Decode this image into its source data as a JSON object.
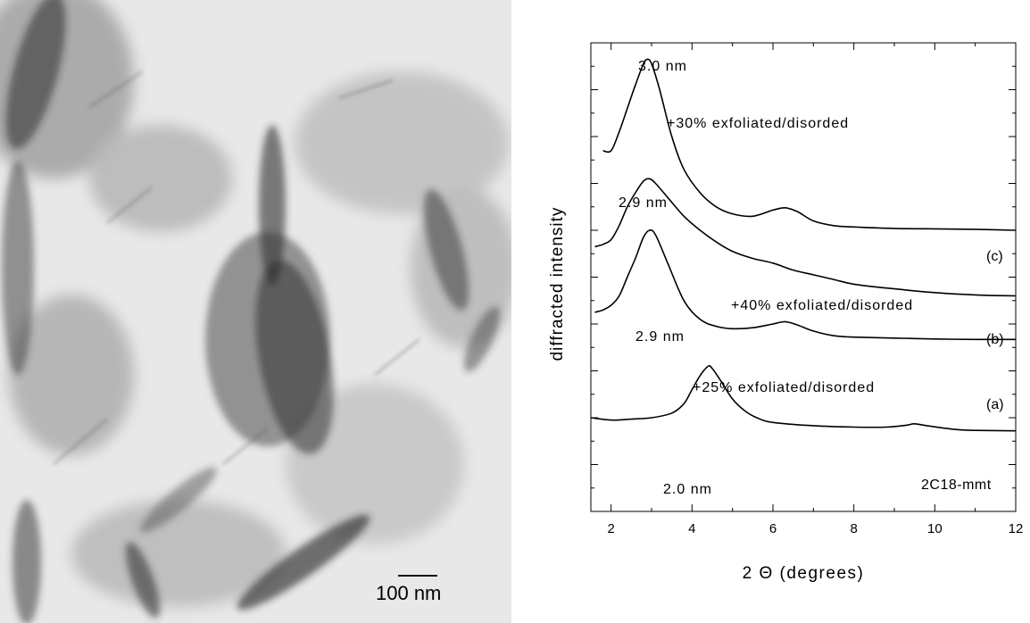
{
  "micrograph": {
    "scale_bar_label": "100 nm"
  },
  "chart_data": {
    "type": "line",
    "xlabel": "2 Θ (degrees)",
    "ylabel": "diffracted intensity",
    "xlim": [
      1.5,
      12
    ],
    "x_ticks": [
      "2",
      "4",
      "6",
      "8",
      "10",
      "12"
    ],
    "y_tick_labels": "none",
    "series": [
      {
        "name": "(c)",
        "annotation": "+30% exfoliated/disorded",
        "peak_label": "3.0 nm",
        "points": [
          [
            1.8,
            0.77
          ],
          [
            2.0,
            0.77
          ],
          [
            2.2,
            0.81
          ],
          [
            2.4,
            0.86
          ],
          [
            2.6,
            0.91
          ],
          [
            2.8,
            0.955
          ],
          [
            2.9,
            0.965
          ],
          [
            3.0,
            0.955
          ],
          [
            3.2,
            0.9
          ],
          [
            3.5,
            0.8
          ],
          [
            3.8,
            0.73
          ],
          [
            4.2,
            0.68
          ],
          [
            4.6,
            0.65
          ],
          [
            5.0,
            0.635
          ],
          [
            5.5,
            0.63
          ],
          [
            6.0,
            0.643
          ],
          [
            6.3,
            0.648
          ],
          [
            6.6,
            0.64
          ],
          [
            7.0,
            0.62
          ],
          [
            7.5,
            0.61
          ],
          [
            8.0,
            0.607
          ],
          [
            9.0,
            0.604
          ],
          [
            10.0,
            0.603
          ],
          [
            11.0,
            0.602
          ],
          [
            12.0,
            0.6
          ]
        ]
      },
      {
        "name": "(b)",
        "annotation": "+40% exfoliated/disorded",
        "peak_label": "2.9 nm",
        "points": [
          [
            1.6,
            0.565
          ],
          [
            1.8,
            0.57
          ],
          [
            2.0,
            0.58
          ],
          [
            2.2,
            0.61
          ],
          [
            2.4,
            0.65
          ],
          [
            2.6,
            0.68
          ],
          [
            2.8,
            0.705
          ],
          [
            2.95,
            0.71
          ],
          [
            3.1,
            0.7
          ],
          [
            3.4,
            0.67
          ],
          [
            3.8,
            0.63
          ],
          [
            4.2,
            0.6
          ],
          [
            4.6,
            0.575
          ],
          [
            5.0,
            0.555
          ],
          [
            5.5,
            0.54
          ],
          [
            6.0,
            0.53
          ],
          [
            6.5,
            0.515
          ],
          [
            7.0,
            0.505
          ],
          [
            7.5,
            0.495
          ],
          [
            8.0,
            0.485
          ],
          [
            9.0,
            0.475
          ],
          [
            10.0,
            0.467
          ],
          [
            11.0,
            0.462
          ],
          [
            12.0,
            0.46
          ]
        ]
      },
      {
        "name": "(a)",
        "annotation": "+25% exfoliated/disorded",
        "peak_label": "2.9 nm",
        "points": [
          [
            1.6,
            0.425
          ],
          [
            1.8,
            0.43
          ],
          [
            2.0,
            0.44
          ],
          [
            2.2,
            0.46
          ],
          [
            2.4,
            0.5
          ],
          [
            2.6,
            0.54
          ],
          [
            2.8,
            0.585
          ],
          [
            2.95,
            0.6
          ],
          [
            3.1,
            0.59
          ],
          [
            3.4,
            0.53
          ],
          [
            3.8,
            0.45
          ],
          [
            4.2,
            0.41
          ],
          [
            4.6,
            0.395
          ],
          [
            5.0,
            0.39
          ],
          [
            5.5,
            0.392
          ],
          [
            6.0,
            0.4
          ],
          [
            6.3,
            0.405
          ],
          [
            6.6,
            0.398
          ],
          [
            7.0,
            0.385
          ],
          [
            7.5,
            0.375
          ],
          [
            8.0,
            0.372
          ],
          [
            9.0,
            0.37
          ],
          [
            10.0,
            0.368
          ],
          [
            11.0,
            0.367
          ],
          [
            12.0,
            0.367
          ]
        ]
      },
      {
        "name": "2C18-mmt",
        "annotation": "",
        "peak_label": "2.0 nm",
        "points": [
          [
            1.5,
            0.2
          ],
          [
            2.0,
            0.195
          ],
          [
            2.5,
            0.197
          ],
          [
            3.0,
            0.2
          ],
          [
            3.5,
            0.21
          ],
          [
            3.8,
            0.23
          ],
          [
            4.0,
            0.26
          ],
          [
            4.2,
            0.29
          ],
          [
            4.4,
            0.31
          ],
          [
            4.5,
            0.305
          ],
          [
            4.7,
            0.28
          ],
          [
            5.0,
            0.24
          ],
          [
            5.3,
            0.215
          ],
          [
            5.6,
            0.2
          ],
          [
            6.0,
            0.19
          ],
          [
            7.0,
            0.183
          ],
          [
            8.0,
            0.18
          ],
          [
            8.8,
            0.18
          ],
          [
            9.3,
            0.184
          ],
          [
            9.5,
            0.187
          ],
          [
            9.8,
            0.183
          ],
          [
            10.5,
            0.175
          ],
          [
            11.0,
            0.173
          ],
          [
            12.0,
            0.172
          ]
        ]
      }
    ]
  }
}
